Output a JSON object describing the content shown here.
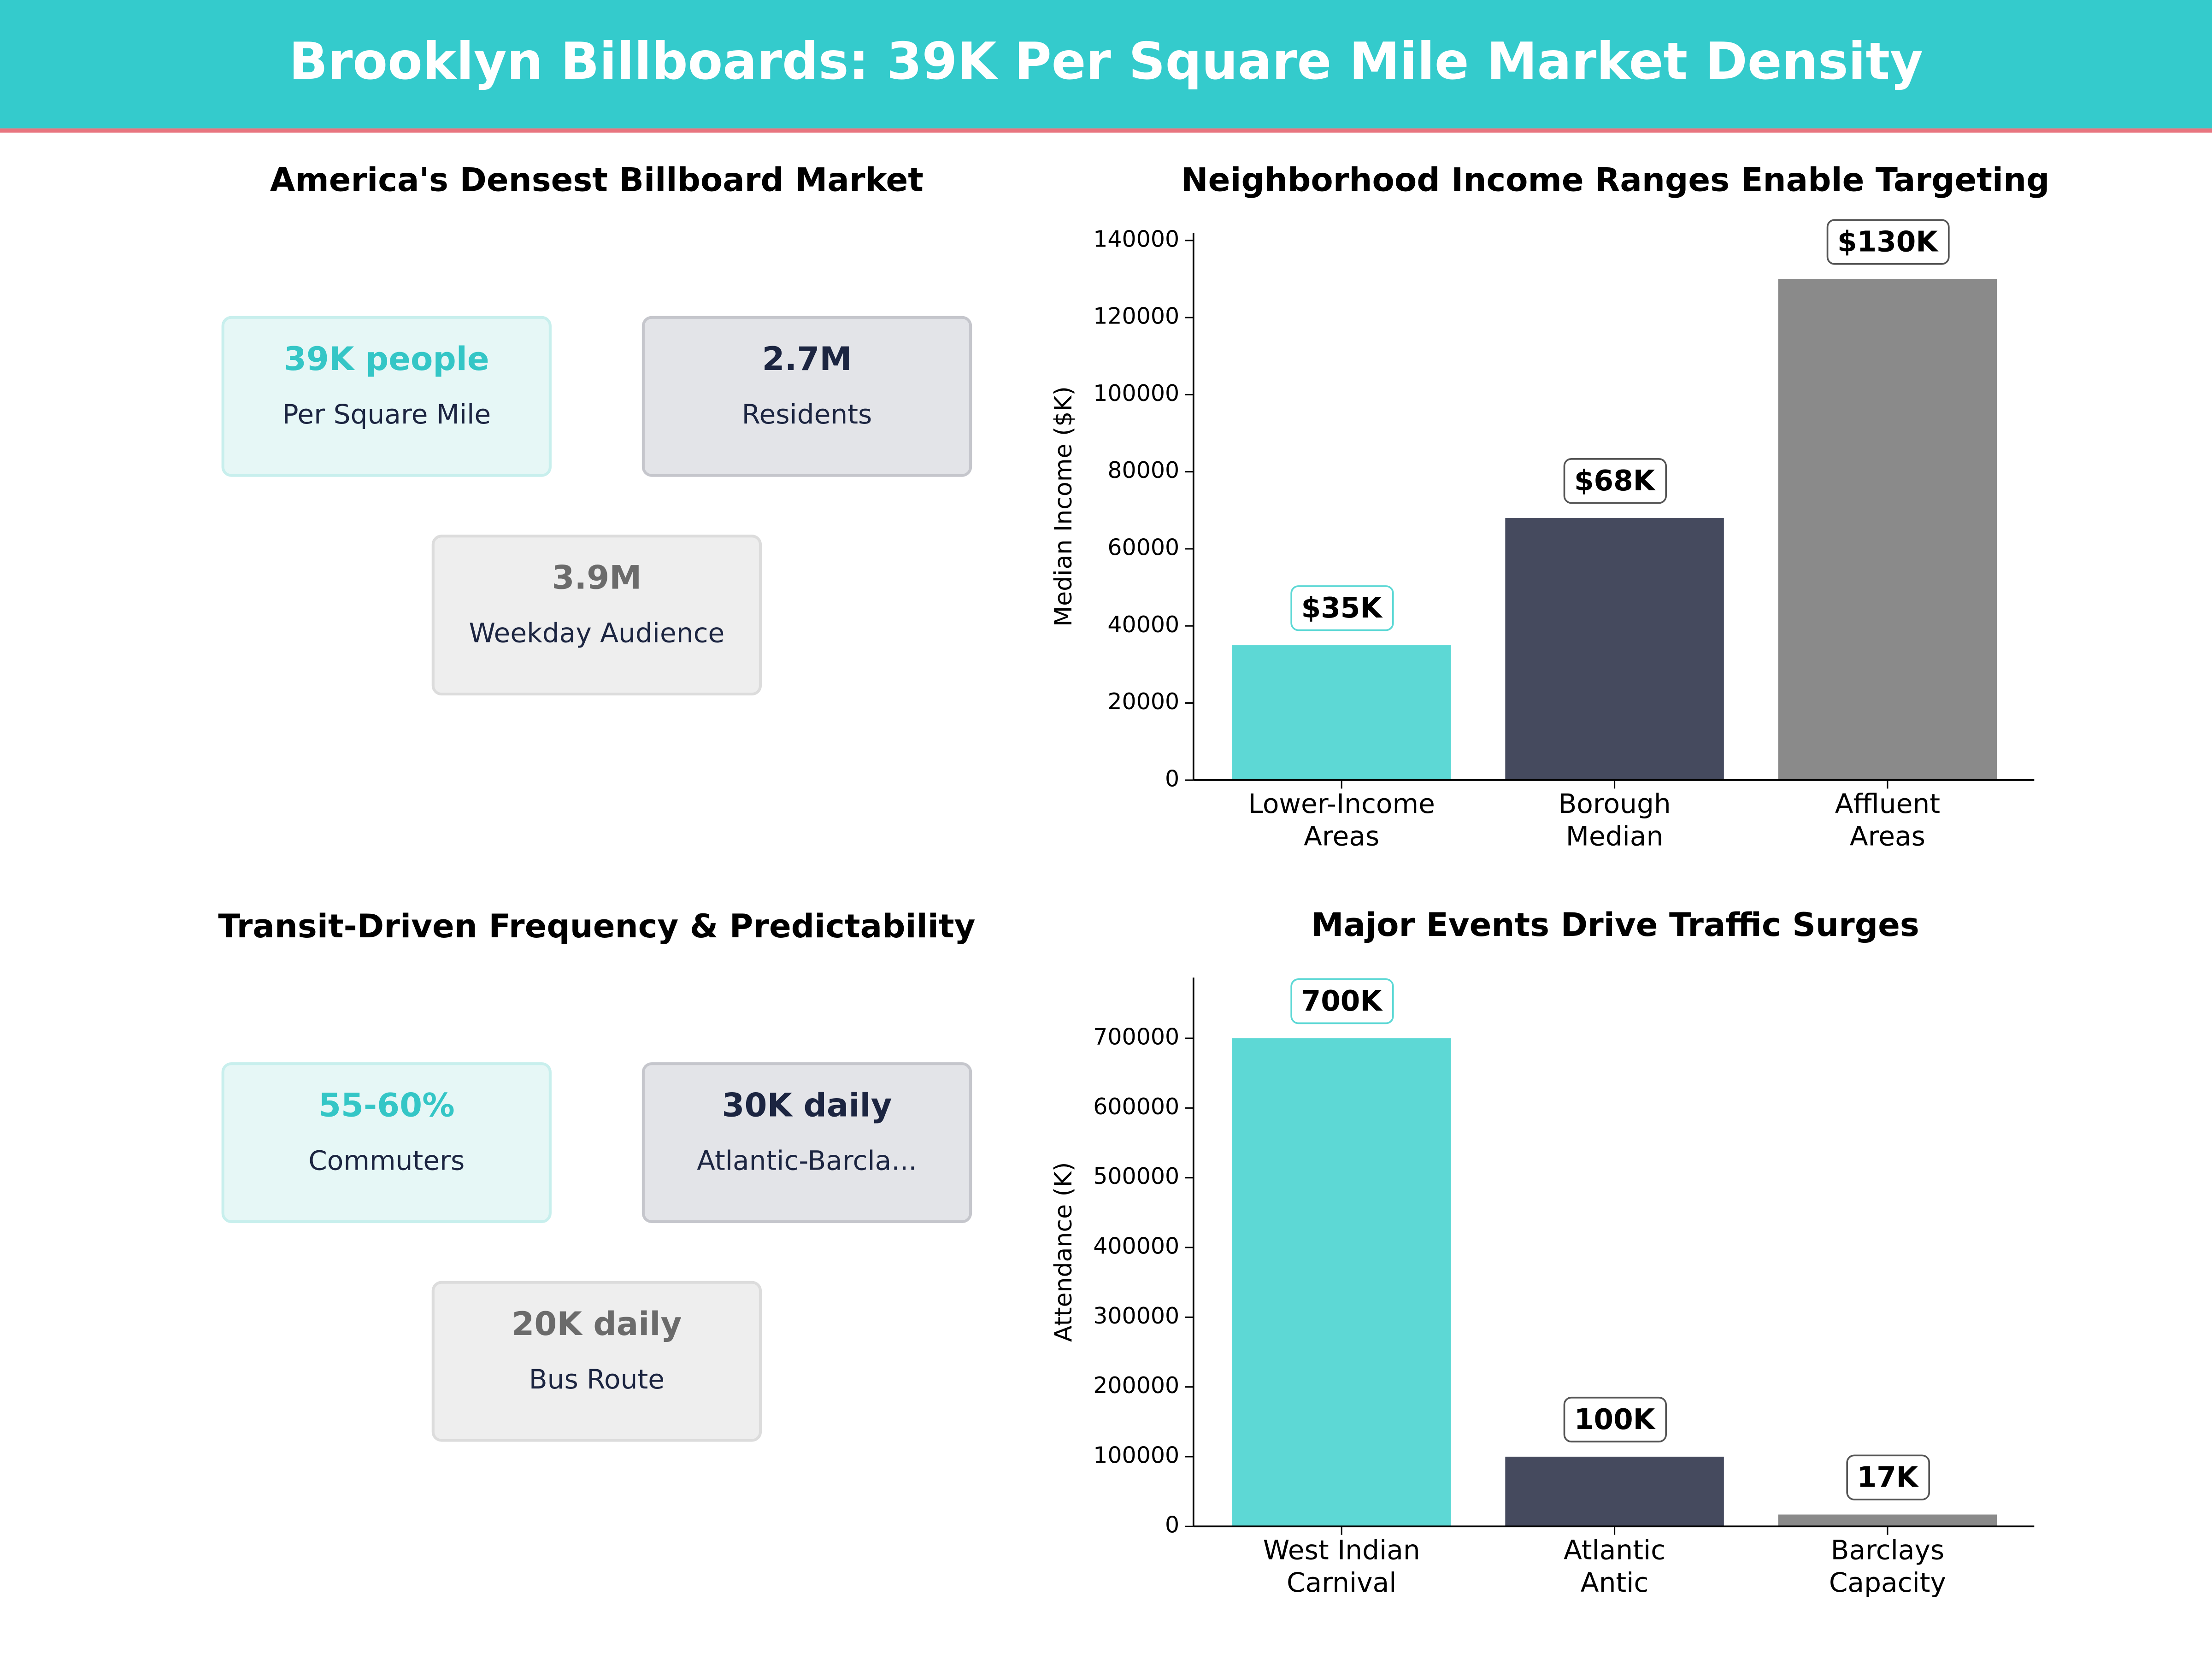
{
  "header": {
    "title": "Brooklyn Billboards: 39K Per Square Mile Market Density"
  },
  "stat_panels": [
    {
      "title": "America's Densest Billboard Market",
      "cards": [
        {
          "value": "39K people",
          "label": "Per Square Mile"
        },
        {
          "value": "2.7M",
          "label": "Residents"
        },
        {
          "value": "3.9M",
          "label": "Weekday Audience"
        }
      ]
    },
    {
      "title": "Transit-Driven Frequency & Predictability",
      "cards": [
        {
          "value": "55-60%",
          "label": "Commuters"
        },
        {
          "value": "30K daily",
          "label": "Atlantic-Barcla..."
        },
        {
          "value": "20K daily",
          "label": "Bus Route"
        }
      ]
    }
  ],
  "chart_data": [
    {
      "type": "bar",
      "title": "Neighborhood Income Ranges Enable Targeting",
      "y_label": "Median Income ($K)",
      "categories": [
        "Lower-Income\nAreas",
        "Borough\nMedian",
        "Affluent\nAreas"
      ],
      "values": [
        35000,
        68000,
        130000
      ],
      "value_labels": [
        "$35K",
        "$68K",
        "$130K"
      ],
      "colors": [
        "#5dd8d5",
        "#454a5e",
        "#8a8a8a"
      ],
      "ylim": [
        0,
        142000
      ],
      "yticks": [
        0,
        20000,
        40000,
        60000,
        80000,
        100000,
        120000,
        140000
      ]
    },
    {
      "type": "bar",
      "title": "Major Events Drive Traffic Surges",
      "y_label": "Attendance (K)",
      "categories": [
        "West Indian\nCarnival",
        "Atlantic\nAntic",
        "Barclays\nCapacity"
      ],
      "values": [
        700000,
        100000,
        17000
      ],
      "value_labels": [
        "700K",
        "100K",
        "17K"
      ],
      "colors": [
        "#5dd8d5",
        "#454a5e",
        "#8a8a8a"
      ],
      "ylim": [
        0,
        787000
      ],
      "yticks": [
        0,
        100000,
        200000,
        300000,
        400000,
        500000,
        600000,
        700000
      ]
    }
  ]
}
